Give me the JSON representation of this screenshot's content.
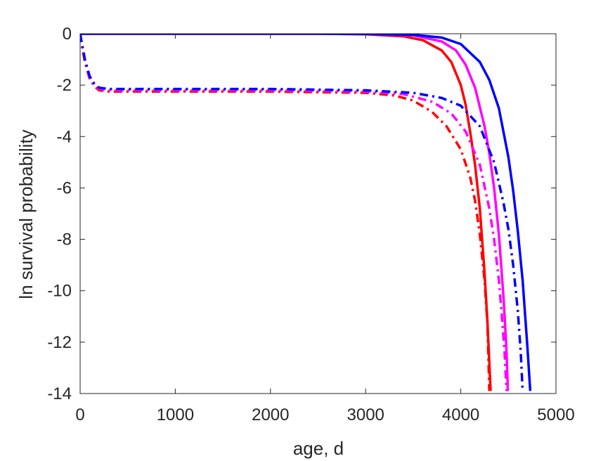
{
  "chart_data": {
    "type": "line",
    "title": "",
    "xlabel": "age, d",
    "ylabel": "ln survival probability",
    "xlim": [
      0,
      5000
    ],
    "ylim": [
      -14,
      0
    ],
    "xticks": [
      0,
      1000,
      2000,
      3000,
      4000,
      5000
    ],
    "yticks": [
      0,
      -2,
      -4,
      -6,
      -8,
      -10,
      -12,
      -14
    ],
    "grid": false,
    "legend": "none",
    "series": [
      {
        "color": "#ff0000",
        "style": "solid",
        "x": [
          0,
          2500,
          3000,
          3400,
          3600,
          3800,
          3900,
          4000,
          4050,
          4100,
          4150,
          4200,
          4250,
          4280,
          4300,
          4313
        ],
        "y": [
          0,
          0,
          -0.02,
          -0.1,
          -0.25,
          -0.65,
          -1.1,
          -2.0,
          -2.75,
          -3.85,
          -5.1,
          -6.8,
          -9.3,
          -11.2,
          -12.8,
          -13.9
        ]
      },
      {
        "color": "#ff00ff",
        "style": "solid",
        "x": [
          0,
          2500,
          3000,
          3500,
          3800,
          3950,
          4050,
          4150,
          4250,
          4300,
          4350,
          4400,
          4450,
          4480,
          4495
        ],
        "y": [
          0,
          0,
          -0.01,
          -0.06,
          -0.3,
          -0.65,
          -1.2,
          -2.1,
          -3.6,
          -4.65,
          -6.0,
          -7.8,
          -10.3,
          -12.3,
          -13.9
        ]
      },
      {
        "color": "#0000ff",
        "style": "solid",
        "x": [
          0,
          2500,
          3000,
          3500,
          3800,
          4000,
          4200,
          4300,
          4400,
          4500,
          4550,
          4600,
          4650,
          4700,
          4730
        ],
        "y": [
          0,
          0,
          -0.01,
          -0.04,
          -0.15,
          -0.4,
          -1.1,
          -1.8,
          -2.9,
          -4.8,
          -6.1,
          -7.7,
          -9.6,
          -12.2,
          -13.9
        ]
      },
      {
        "color": "#ff0000",
        "style": "dashdot",
        "x": [
          0,
          20,
          50,
          100,
          150,
          200,
          300,
          500,
          1000,
          2000,
          3000,
          3300,
          3500,
          3700,
          3850,
          4000,
          4100,
          4150,
          4200,
          4250,
          4280,
          4300
        ],
        "y": [
          0,
          -0.5,
          -1.1,
          -1.75,
          -2.05,
          -2.2,
          -2.25,
          -2.25,
          -2.25,
          -2.25,
          -2.3,
          -2.4,
          -2.6,
          -3.05,
          -3.6,
          -4.5,
          -5.6,
          -6.5,
          -7.8,
          -9.6,
          -11.3,
          -13.9
        ]
      },
      {
        "color": "#ff00ff",
        "style": "dashdot",
        "x": [
          0,
          20,
          50,
          100,
          150,
          200,
          300,
          500,
          1000,
          2000,
          3000,
          3400,
          3700,
          3900,
          4050,
          4200,
          4300,
          4350,
          4400,
          4430,
          4460,
          4480
        ],
        "y": [
          0,
          -0.45,
          -1.05,
          -1.7,
          -2.0,
          -2.15,
          -2.2,
          -2.2,
          -2.2,
          -2.2,
          -2.25,
          -2.35,
          -2.65,
          -3.1,
          -3.8,
          -5.1,
          -6.8,
          -8.0,
          -9.6,
          -10.9,
          -12.4,
          -13.9
        ]
      },
      {
        "color": "#0000ff",
        "style": "dashdot",
        "x": [
          0,
          20,
          50,
          100,
          150,
          200,
          300,
          500,
          1000,
          2000,
          3000,
          3500,
          3800,
          4000,
          4200,
          4350,
          4450,
          4500,
          4550,
          4600,
          4630,
          4650
        ],
        "y": [
          0,
          -0.4,
          -1.0,
          -1.65,
          -1.95,
          -2.1,
          -2.15,
          -2.15,
          -2.15,
          -2.15,
          -2.2,
          -2.3,
          -2.5,
          -2.8,
          -3.6,
          -5.0,
          -6.6,
          -7.6,
          -9.0,
          -10.8,
          -12.4,
          -13.9
        ]
      }
    ]
  }
}
